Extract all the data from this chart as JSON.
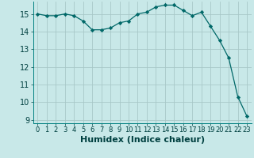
{
  "title": "",
  "xlabel": "Humidex (Indice chaleur)",
  "ylabel": "",
  "x_values": [
    0,
    1,
    2,
    3,
    4,
    5,
    6,
    7,
    8,
    9,
    10,
    11,
    12,
    13,
    14,
    15,
    16,
    17,
    18,
    19,
    20,
    21,
    22,
    23
  ],
  "y_values": [
    15.0,
    14.9,
    14.9,
    15.0,
    14.9,
    14.6,
    14.1,
    14.1,
    14.2,
    14.5,
    14.6,
    15.0,
    15.1,
    15.4,
    15.5,
    15.5,
    15.2,
    14.9,
    15.1,
    14.3,
    13.5,
    12.5,
    10.3,
    9.2
  ],
  "line_color": "#006868",
  "marker_color": "#006868",
  "bg_color": "#c8e8e8",
  "grid_color": "#a8c8c8",
  "ylim_min": 8.8,
  "ylim_max": 15.7,
  "yticks": [
    9,
    10,
    11,
    12,
    13,
    14,
    15
  ],
  "tick_fontsize": 7,
  "xlabel_fontsize": 8
}
